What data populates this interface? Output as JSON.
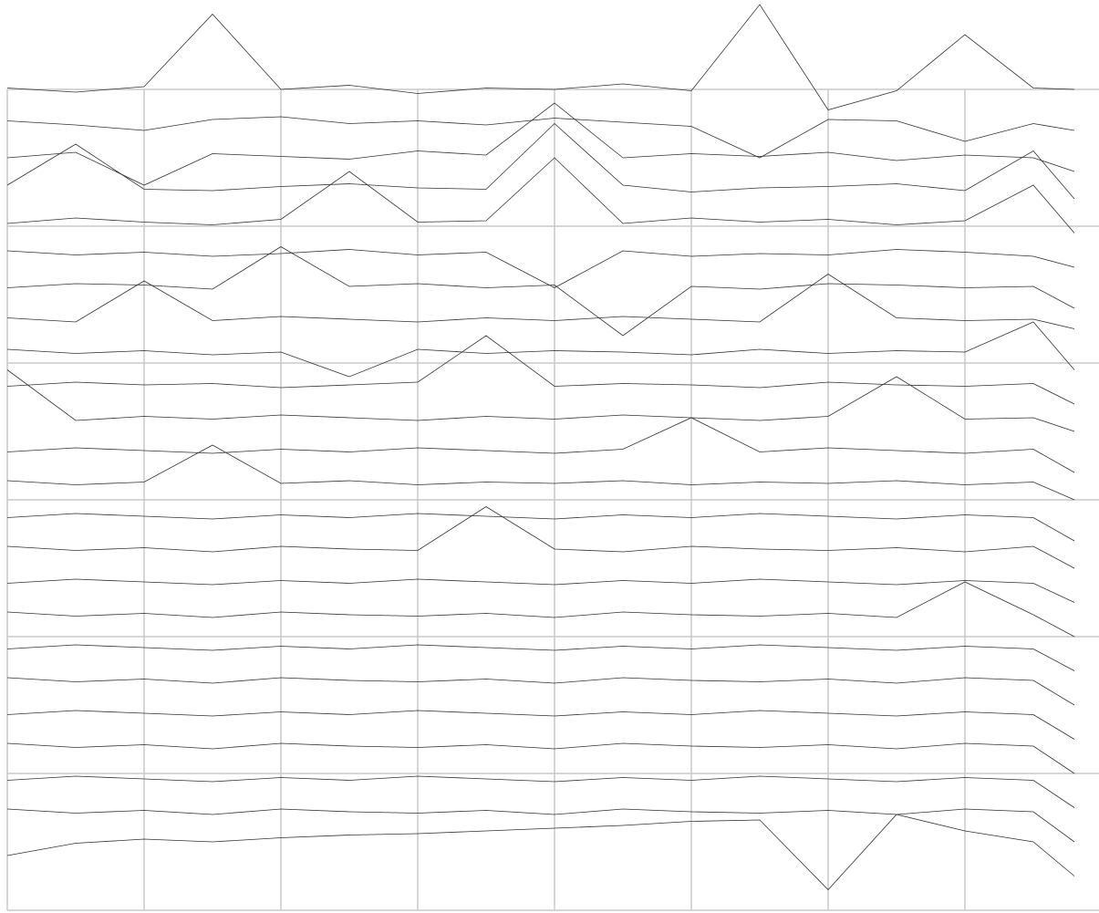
{
  "chart_data": {
    "type": "line",
    "color": "#333333",
    "grid": true,
    "xlim": [
      0,
      7.98
    ],
    "ylim": [
      0,
      6.65
    ],
    "xticks": [
      0,
      1,
      2,
      3,
      4,
      5,
      6,
      7
    ],
    "yticks": [
      0,
      1,
      2,
      3,
      4,
      5,
      6
    ],
    "x": [
      0,
      0.5,
      1,
      1.5,
      2,
      2.5,
      3,
      3.5,
      4,
      4.5,
      5,
      5.5,
      6,
      6.5,
      7,
      7.5,
      7.8
    ],
    "series": [
      {
        "values": [
          6.01,
          5.98,
          6.02,
          6.55,
          6.0,
          6.03,
          5.97,
          6.01,
          6.0,
          6.04,
          5.99,
          6.62,
          5.85,
          5.99,
          6.4,
          6.01,
          6.0
        ]
      },
      {
        "values": [
          5.77,
          5.74,
          5.7,
          5.78,
          5.8,
          5.75,
          5.77,
          5.74,
          5.79,
          5.76,
          5.73,
          5.5,
          5.78,
          5.77,
          5.62,
          5.75,
          5.7
        ]
      },
      {
        "values": [
          5.5,
          5.54,
          5.3,
          5.53,
          5.51,
          5.49,
          5.55,
          5.52,
          5.9,
          5.5,
          5.53,
          5.51,
          5.54,
          5.48,
          5.52,
          5.5,
          5.4
        ]
      },
      {
        "values": [
          5.3,
          5.6,
          5.27,
          5.26,
          5.29,
          5.31,
          5.28,
          5.27,
          5.75,
          5.3,
          5.25,
          5.28,
          5.29,
          5.31,
          5.26,
          5.55,
          5.2
        ]
      },
      {
        "values": [
          5.02,
          5.06,
          5.03,
          5.01,
          5.05,
          5.4,
          5.03,
          5.04,
          5.5,
          5.02,
          5.06,
          5.03,
          5.05,
          5.01,
          5.04,
          5.3,
          4.95
        ]
      },
      {
        "values": [
          4.82,
          4.79,
          4.81,
          4.78,
          4.8,
          4.83,
          4.79,
          4.81,
          4.55,
          4.82,
          4.78,
          4.8,
          4.79,
          4.83,
          4.81,
          4.78,
          4.7
        ]
      },
      {
        "values": [
          4.55,
          4.58,
          4.57,
          4.54,
          4.85,
          4.56,
          4.58,
          4.55,
          4.57,
          4.2,
          4.56,
          4.54,
          4.58,
          4.57,
          4.55,
          4.56,
          4.4
        ]
      },
      {
        "values": [
          4.33,
          4.3,
          4.6,
          4.31,
          4.34,
          4.32,
          4.3,
          4.33,
          4.31,
          4.34,
          4.32,
          4.3,
          4.65,
          4.33,
          4.31,
          4.32,
          4.25
        ]
      },
      {
        "values": [
          4.1,
          4.07,
          4.09,
          4.06,
          4.08,
          3.9,
          4.1,
          4.07,
          4.09,
          4.08,
          4.06,
          4.1,
          4.07,
          4.09,
          4.08,
          4.3,
          3.95
        ]
      },
      {
        "values": [
          3.83,
          3.86,
          3.84,
          3.85,
          3.82,
          3.84,
          3.86,
          4.2,
          3.83,
          3.85,
          3.84,
          3.82,
          3.86,
          3.84,
          3.83,
          3.85,
          3.7
        ]
      },
      {
        "values": [
          3.95,
          3.58,
          3.61,
          3.59,
          3.62,
          3.6,
          3.58,
          3.61,
          3.59,
          3.62,
          3.6,
          3.58,
          3.61,
          3.9,
          3.59,
          3.6,
          3.5
        ]
      },
      {
        "values": [
          3.35,
          3.38,
          3.36,
          3.34,
          3.37,
          3.35,
          3.38,
          3.36,
          3.34,
          3.37,
          3.6,
          3.35,
          3.38,
          3.36,
          3.34,
          3.37,
          3.2
        ]
      },
      {
        "values": [
          3.14,
          3.11,
          3.13,
          3.4,
          3.12,
          3.14,
          3.11,
          3.13,
          3.12,
          3.14,
          3.11,
          3.13,
          3.12,
          3.14,
          3.11,
          3.13,
          3.0
        ]
      },
      {
        "values": [
          2.87,
          2.9,
          2.88,
          2.86,
          2.89,
          2.87,
          2.9,
          2.88,
          2.86,
          2.89,
          2.87,
          2.9,
          2.88,
          2.86,
          2.89,
          2.87,
          2.7
        ]
      },
      {
        "values": [
          2.66,
          2.63,
          2.65,
          2.62,
          2.66,
          2.64,
          2.63,
          2.95,
          2.64,
          2.62,
          2.66,
          2.64,
          2.63,
          2.65,
          2.62,
          2.66,
          2.5
        ]
      },
      {
        "values": [
          2.39,
          2.42,
          2.4,
          2.38,
          2.41,
          2.39,
          2.42,
          2.4,
          2.38,
          2.41,
          2.39,
          2.42,
          2.4,
          2.38,
          2.41,
          2.39,
          2.25
        ]
      },
      {
        "values": [
          2.18,
          2.15,
          2.17,
          2.14,
          2.18,
          2.16,
          2.15,
          2.17,
          2.14,
          2.18,
          2.16,
          2.15,
          2.17,
          2.14,
          2.4,
          2.16,
          2.0
        ]
      },
      {
        "values": [
          1.91,
          1.94,
          1.92,
          1.9,
          1.93,
          1.91,
          1.94,
          1.92,
          1.9,
          1.93,
          1.91,
          1.94,
          1.92,
          1.9,
          1.93,
          1.91,
          1.75
        ]
      },
      {
        "values": [
          1.7,
          1.67,
          1.69,
          1.66,
          1.7,
          1.68,
          1.67,
          1.69,
          1.66,
          1.7,
          1.68,
          1.67,
          1.69,
          1.66,
          1.7,
          1.68,
          1.5
        ]
      },
      {
        "values": [
          1.43,
          1.46,
          1.44,
          1.42,
          1.45,
          1.43,
          1.46,
          1.44,
          1.42,
          1.45,
          1.43,
          1.46,
          1.44,
          1.42,
          1.45,
          1.43,
          1.25
        ]
      },
      {
        "values": [
          1.22,
          1.19,
          1.21,
          1.18,
          1.22,
          1.2,
          1.19,
          1.21,
          1.18,
          1.22,
          1.2,
          1.19,
          1.21,
          1.18,
          1.22,
          1.2,
          1.0
        ]
      },
      {
        "values": [
          0.95,
          0.98,
          0.96,
          0.94,
          0.97,
          0.95,
          0.98,
          0.96,
          0.94,
          0.97,
          0.95,
          0.98,
          0.96,
          0.94,
          0.97,
          0.95,
          0.75
        ]
      },
      {
        "values": [
          0.74,
          0.71,
          0.73,
          0.7,
          0.74,
          0.72,
          0.71,
          0.73,
          0.7,
          0.74,
          0.72,
          0.71,
          0.73,
          0.7,
          0.74,
          0.72,
          0.5
        ]
      },
      {
        "values": [
          0.4,
          0.49,
          0.52,
          0.5,
          0.53,
          0.55,
          0.56,
          0.58,
          0.6,
          0.62,
          0.65,
          0.66,
          0.15,
          0.7,
          0.58,
          0.5,
          0.25
        ]
      }
    ]
  }
}
